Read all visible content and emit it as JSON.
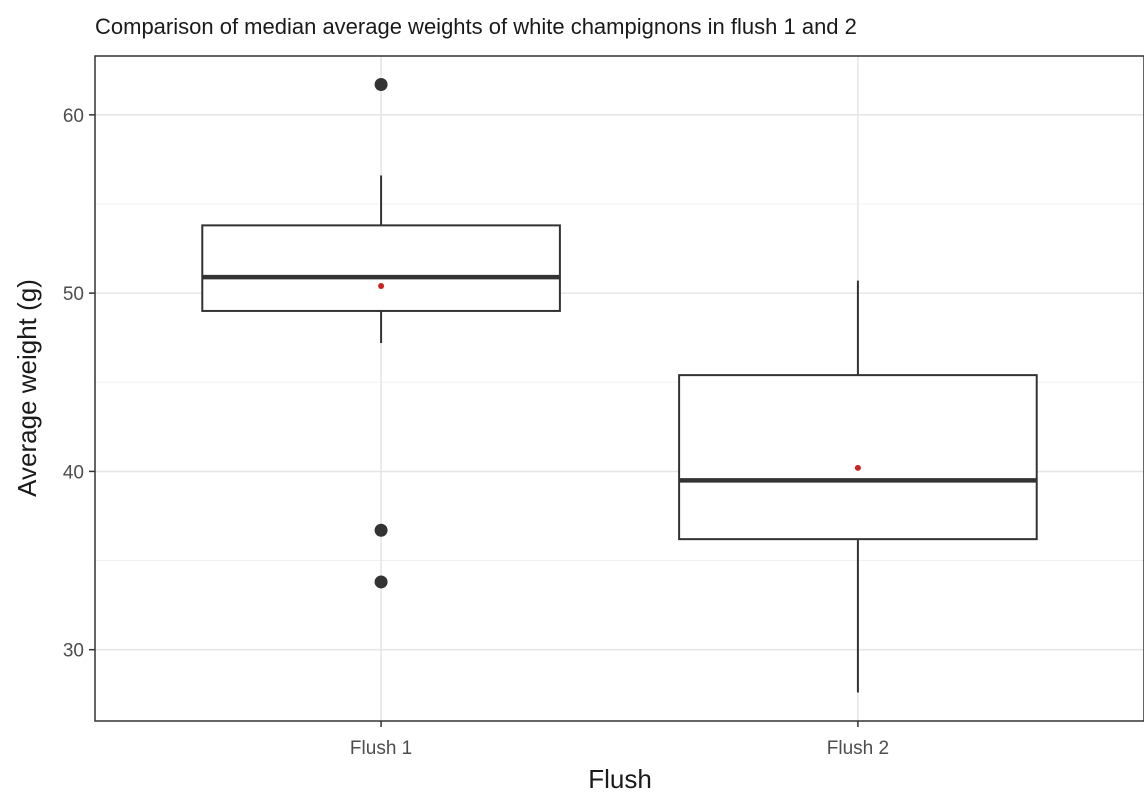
{
  "chart_data": {
    "type": "boxplot",
    "title": "Comparison of median average weights of white champignons in flush 1 and 2",
    "xlabel": "Flush",
    "ylabel": "Average weight (g)",
    "categories": [
      "Flush 1",
      "Flush 2"
    ],
    "ylim": [
      26,
      63.3
    ],
    "yticks": [
      30,
      40,
      50,
      60
    ],
    "grid": true,
    "boxes": [
      {
        "category": "Flush 1",
        "whisker_low": 47.2,
        "q1": 49.0,
        "median": 50.9,
        "q3": 53.8,
        "whisker_high": 56.6,
        "mean": 50.4,
        "outliers": [
          61.7,
          36.7,
          33.8
        ]
      },
      {
        "category": "Flush 2",
        "whisker_low": 27.6,
        "q1": 36.2,
        "median": 39.5,
        "q3": 45.4,
        "whisker_high": 50.7,
        "mean": 40.2,
        "outliers": []
      }
    ],
    "colors": {
      "box": "#333333",
      "outlier": "#333333",
      "mean": "#cc2222",
      "grid": "#e6e6e6",
      "panel_border": "#333333"
    }
  }
}
